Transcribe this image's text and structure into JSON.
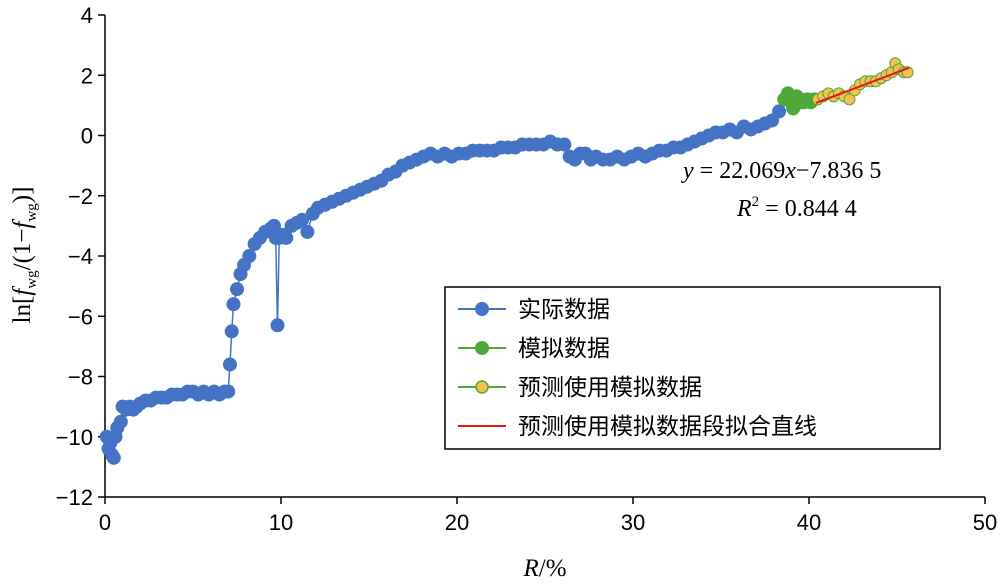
{
  "chart_data": {
    "type": "scatter",
    "xlabel_prefix": "R",
    "xlabel_suffix": "/%",
    "ylabel_parts": [
      "ln[",
      "f",
      "wg",
      "/(1−",
      "f",
      "wg",
      ")]"
    ],
    "xlim": [
      0,
      50
    ],
    "ylim": [
      -12,
      4
    ],
    "x_ticks": [
      0,
      10,
      20,
      30,
      40,
      50
    ],
    "y_ticks": [
      4,
      2,
      0,
      -2,
      -4,
      -6,
      -8,
      -10,
      -12
    ],
    "y_tick_labels": [
      "4",
      "2",
      "0",
      "−2",
      "−4",
      "−6",
      "−8",
      "−10",
      "−12"
    ],
    "grid": false,
    "legend_position": "right-center",
    "colors": {
      "actual": "#4472C4",
      "simulated": "#4EA83A",
      "predicted_fill": "#F2C14E",
      "predicted_line": "#4EA83A",
      "fit_line": "#E8141B"
    },
    "series": [
      {
        "name": "实际数据",
        "style": "line-marker",
        "points": [
          [
            0.1,
            -10.0
          ],
          [
            0.2,
            -10.4
          ],
          [
            0.3,
            -10.2
          ],
          [
            0.4,
            -10.6
          ],
          [
            0.5,
            -10.7
          ],
          [
            0.6,
            -10.0
          ],
          [
            0.7,
            -9.7
          ],
          [
            0.9,
            -9.5
          ],
          [
            1.0,
            -9.0
          ],
          [
            1.2,
            -9.1
          ],
          [
            1.4,
            -9.0
          ],
          [
            1.6,
            -9.1
          ],
          [
            1.8,
            -9.0
          ],
          [
            2.0,
            -8.9
          ],
          [
            2.3,
            -8.8
          ],
          [
            2.6,
            -8.8
          ],
          [
            2.9,
            -8.7
          ],
          [
            3.2,
            -8.7
          ],
          [
            3.5,
            -8.7
          ],
          [
            3.8,
            -8.6
          ],
          [
            4.1,
            -8.6
          ],
          [
            4.4,
            -8.6
          ],
          [
            4.7,
            -8.5
          ],
          [
            5.0,
            -8.5
          ],
          [
            5.3,
            -8.6
          ],
          [
            5.6,
            -8.5
          ],
          [
            5.9,
            -8.6
          ],
          [
            6.2,
            -8.5
          ],
          [
            6.5,
            -8.6
          ],
          [
            6.8,
            -8.5
          ],
          [
            7.0,
            -8.5
          ],
          [
            7.1,
            -7.6
          ],
          [
            7.2,
            -6.5
          ],
          [
            7.3,
            -5.6
          ],
          [
            7.5,
            -5.1
          ],
          [
            7.7,
            -4.6
          ],
          [
            7.9,
            -4.3
          ],
          [
            8.2,
            -4.0
          ],
          [
            8.5,
            -3.6
          ],
          [
            8.8,
            -3.4
          ],
          [
            9.1,
            -3.2
          ],
          [
            9.4,
            -3.1
          ],
          [
            9.6,
            -3.0
          ],
          [
            9.7,
            -3.4
          ],
          [
            9.8,
            -6.3
          ],
          [
            9.9,
            -3.4
          ],
          [
            10.1,
            -3.3
          ],
          [
            10.3,
            -3.4
          ],
          [
            10.6,
            -3.0
          ],
          [
            10.9,
            -2.9
          ],
          [
            11.2,
            -2.8
          ],
          [
            11.5,
            -3.2
          ],
          [
            11.8,
            -2.6
          ],
          [
            12.1,
            -2.4
          ],
          [
            12.5,
            -2.3
          ],
          [
            12.9,
            -2.2
          ],
          [
            13.3,
            -2.1
          ],
          [
            13.7,
            -2.0
          ],
          [
            14.1,
            -1.9
          ],
          [
            14.5,
            -1.8
          ],
          [
            14.9,
            -1.7
          ],
          [
            15.3,
            -1.6
          ],
          [
            15.7,
            -1.5
          ],
          [
            16.1,
            -1.3
          ],
          [
            16.5,
            -1.2
          ],
          [
            16.9,
            -1.0
          ],
          [
            17.3,
            -0.9
          ],
          [
            17.7,
            -0.8
          ],
          [
            18.1,
            -0.7
          ],
          [
            18.5,
            -0.6
          ],
          [
            18.9,
            -0.7
          ],
          [
            19.3,
            -0.6
          ],
          [
            19.7,
            -0.7
          ],
          [
            20.1,
            -0.6
          ],
          [
            20.5,
            -0.6
          ],
          [
            20.9,
            -0.5
          ],
          [
            21.3,
            -0.5
          ],
          [
            21.7,
            -0.5
          ],
          [
            22.1,
            -0.5
          ],
          [
            22.5,
            -0.4
          ],
          [
            22.9,
            -0.4
          ],
          [
            23.3,
            -0.4
          ],
          [
            23.7,
            -0.3
          ],
          [
            24.1,
            -0.3
          ],
          [
            24.5,
            -0.3
          ],
          [
            24.9,
            -0.3
          ],
          [
            25.3,
            -0.2
          ],
          [
            25.7,
            -0.3
          ],
          [
            26.1,
            -0.3
          ],
          [
            26.4,
            -0.7
          ],
          [
            26.7,
            -0.8
          ],
          [
            27.0,
            -0.6
          ],
          [
            27.3,
            -0.6
          ],
          [
            27.6,
            -0.8
          ],
          [
            27.9,
            -0.7
          ],
          [
            28.3,
            -0.8
          ],
          [
            28.7,
            -0.8
          ],
          [
            29.1,
            -0.7
          ],
          [
            29.5,
            -0.8
          ],
          [
            29.9,
            -0.7
          ],
          [
            30.3,
            -0.6
          ],
          [
            30.7,
            -0.7
          ],
          [
            31.1,
            -0.6
          ],
          [
            31.5,
            -0.5
          ],
          [
            31.9,
            -0.5
          ],
          [
            32.3,
            -0.4
          ],
          [
            32.7,
            -0.4
          ],
          [
            33.1,
            -0.3
          ],
          [
            33.5,
            -0.2
          ],
          [
            33.9,
            -0.1
          ],
          [
            34.3,
            0.0
          ],
          [
            34.7,
            0.1
          ],
          [
            35.1,
            0.1
          ],
          [
            35.5,
            0.2
          ],
          [
            35.9,
            0.1
          ],
          [
            36.3,
            0.3
          ],
          [
            36.7,
            0.2
          ],
          [
            37.1,
            0.3
          ],
          [
            37.5,
            0.4
          ],
          [
            37.9,
            0.5
          ],
          [
            38.3,
            0.8
          ],
          [
            38.6,
            1.2
          ]
        ]
      },
      {
        "name": "模拟数据",
        "style": "line-marker",
        "points": [
          [
            38.6,
            1.2
          ],
          [
            38.8,
            1.4
          ],
          [
            38.9,
            1.3
          ],
          [
            39.0,
            1.1
          ],
          [
            39.1,
            0.9
          ],
          [
            39.2,
            1.0
          ],
          [
            39.3,
            1.3
          ],
          [
            39.5,
            1.2
          ],
          [
            39.7,
            1.1
          ],
          [
            39.9,
            1.2
          ],
          [
            40.1,
            1.1
          ],
          [
            40.3,
            1.2
          ]
        ]
      },
      {
        "name": "预测使用模拟数据",
        "style": "line-marker",
        "points": [
          [
            40.5,
            1.2
          ],
          [
            40.8,
            1.3
          ],
          [
            41.1,
            1.4
          ],
          [
            41.4,
            1.3
          ],
          [
            41.7,
            1.4
          ],
          [
            42.0,
            1.3
          ],
          [
            42.3,
            1.2
          ],
          [
            42.6,
            1.5
          ],
          [
            42.9,
            1.7
          ],
          [
            43.2,
            1.8
          ],
          [
            43.5,
            1.8
          ],
          [
            43.8,
            1.8
          ],
          [
            44.1,
            1.9
          ],
          [
            44.4,
            2.0
          ],
          [
            44.7,
            2.1
          ],
          [
            44.9,
            2.4
          ],
          [
            45.1,
            2.2
          ],
          [
            45.4,
            2.1
          ],
          [
            45.6,
            2.1
          ]
        ]
      },
      {
        "name": "预测使用模拟数据段拟合直线",
        "style": "line",
        "slope": 22.069,
        "intercept": -7.8365,
        "x_range": [
          40.4,
          45.7
        ]
      }
    ],
    "annotation": {
      "equation_y": "y",
      "equation_eq": " = 22.069",
      "equation_x": "x",
      "equation_rest": "−7.836 5",
      "r2_label": "R",
      "r2_sup": "2",
      "r2_rest": " = 0.844 4"
    }
  }
}
